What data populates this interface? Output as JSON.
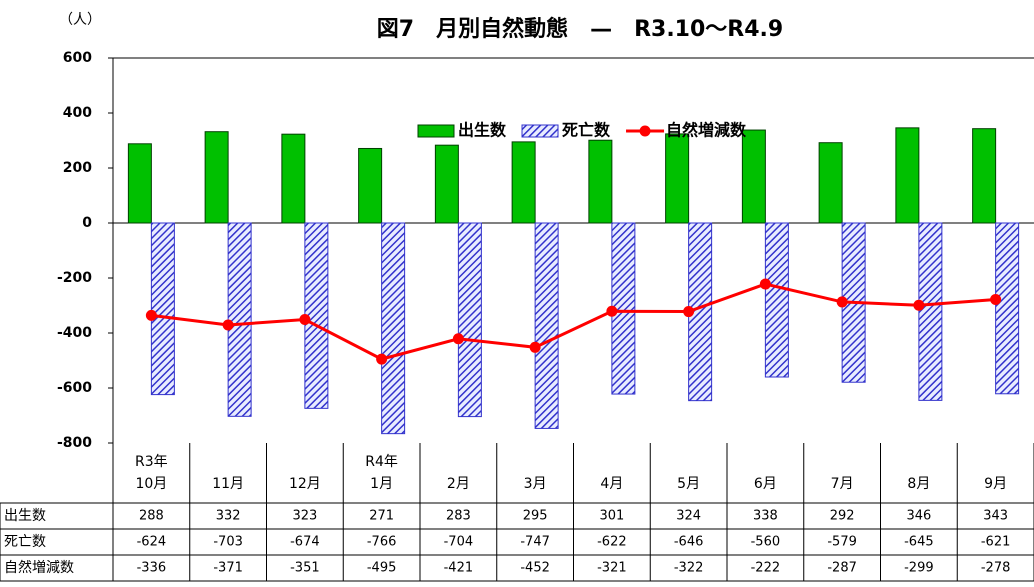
{
  "chart_data": {
    "type": "bar_line",
    "title": "図7　月別自然動態　—　R3.10〜R4.9",
    "y_unit": "（人）",
    "categories": [
      [
        "R3年",
        "10月"
      ],
      [
        "11月"
      ],
      [
        "12月"
      ],
      [
        "R4年",
        "1月"
      ],
      [
        "2月"
      ],
      [
        "3月"
      ],
      [
        "4月"
      ],
      [
        "5月"
      ],
      [
        "6月"
      ],
      [
        "7月"
      ],
      [
        "8月"
      ],
      [
        "9月"
      ]
    ],
    "series": [
      {
        "name": "出生数",
        "color": "#00c000",
        "kind": "bar",
        "values": [
          288,
          332,
          323,
          271,
          283,
          295,
          301,
          324,
          338,
          292,
          346,
          343
        ]
      },
      {
        "name": "死亡数",
        "color": "#3333cc",
        "kind": "hatched-bar",
        "values": [
          -624,
          -703,
          -674,
          -766,
          -704,
          -747,
          -622,
          -646,
          -560,
          -579,
          -645,
          -621
        ]
      },
      {
        "name": "自然増減数",
        "color": "#ff0000",
        "kind": "line",
        "values": [
          -336,
          -371,
          -351,
          -495,
          -421,
          -452,
          -321,
          -322,
          -222,
          -287,
          -299,
          -278
        ]
      }
    ],
    "ylim": [
      -800,
      600
    ],
    "yticks": [
      600,
      400,
      200,
      0,
      -200,
      -400,
      -600,
      -800
    ],
    "legend": "top"
  }
}
